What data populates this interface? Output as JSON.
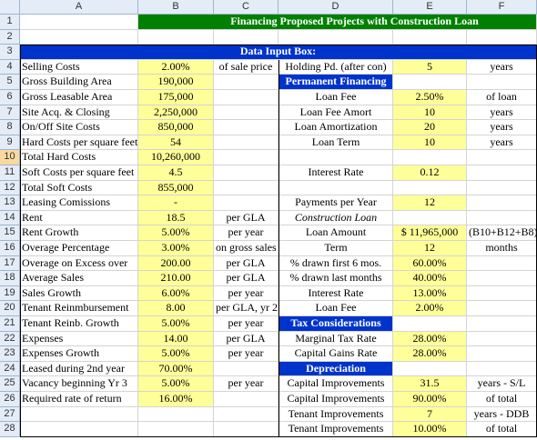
{
  "columns": [
    "A",
    "B",
    "C",
    "D",
    "E",
    "F"
  ],
  "rows": [
    "1",
    "2",
    "3",
    "4",
    "5",
    "6",
    "7",
    "8",
    "9",
    "10",
    "11",
    "12",
    "13",
    "14",
    "15",
    "16",
    "17",
    "18",
    "19",
    "20",
    "21",
    "22",
    "23",
    "24",
    "25",
    "26",
    "27",
    "28"
  ],
  "selected_row": "10",
  "sheet": {
    "title": "Financing Proposed Projects with Construction Loan",
    "data_input_header": "Data Input Box:",
    "left_labels": [
      "Selling Costs",
      "Gross Building Area",
      "Gross Leasable Area",
      "Site Acq. & Closing",
      "On/Off Site Costs",
      "Hard Costs per square feet",
      "Total Hard Costs",
      "Soft Costs per square feet",
      "Total Soft Costs",
      "Leasing Comissions",
      "Rent",
      "Rent Growth",
      "Overage Percentage",
      "Overage on Excess over",
      "Average Sales",
      "Sales Growth",
      "Tenant Reinmbursement",
      "Tenant Reinb. Growth",
      "Expenses",
      "Expenses Growth",
      "Leased during 2nd year",
      "Vacancy beginning Yr 3",
      "Required rate of return",
      "",
      ""
    ],
    "left_values": [
      "2.00%",
      "190,000",
      "175,000",
      "2,250,000",
      "850,000",
      "54",
      "10,260,000",
      "4.5",
      "855,000",
      "-",
      "18.5",
      "5.00%",
      "3.00%",
      "200.00",
      "210.00",
      "6.00%",
      "8.00",
      "5.00%",
      "14.00",
      "5.00%",
      "70.00%",
      "5.00%",
      "16.00%",
      "",
      ""
    ],
    "left_units": [
      "of sale price",
      "",
      "",
      "",
      "",
      "",
      "",
      "",
      "",
      "",
      "per GLA",
      "per year",
      "on gross sales",
      "per GLA",
      "per GLA",
      "per year",
      "per GLA, yr 2",
      "per year",
      "per GLA",
      "per year",
      "",
      "per year",
      "",
      "",
      ""
    ],
    "right_labels": [
      "Holding Pd. (after con)",
      "Permanent Financing",
      "Loan Fee",
      "Loan Fee Amort",
      "Loan Amortization",
      "Loan Term",
      "",
      "Interest Rate",
      "",
      "Payments per Year",
      "Construction Loan",
      "Loan Amount",
      "Term",
      "% drawn first 6 mos.",
      "% drawn last months",
      "Interest Rate",
      "Loan Fee",
      "Tax Considerations",
      "Marginal Tax Rate",
      "Capital Gains Rate",
      "Depreciation",
      "Capital Improvements",
      "Capital Improvements",
      "Tenant Improvements",
      "Tenant Improvements"
    ],
    "right_values": [
      "5",
      "",
      "2.50%",
      "10",
      "20",
      "10",
      "",
      "0.12",
      "",
      "12",
      "",
      "$ 11,965,000",
      "12",
      "60.00%",
      "40.00%",
      "13.00%",
      "2.00%",
      "",
      "28.00%",
      "28.00%",
      "",
      "31.5",
      "90.00%",
      "7",
      "10.00%"
    ],
    "right_units": [
      "years",
      "",
      "of loan",
      "years",
      "years",
      "years",
      "",
      "",
      "",
      "",
      "",
      "(B10+B12+B8)",
      "months",
      "",
      "",
      "",
      "",
      "",
      "",
      "",
      "",
      "years - S/L",
      "of total",
      "years - DDB",
      "of total"
    ]
  },
  "colors": {
    "title_fill": "#008000",
    "header_fill": "#0033cc",
    "input_fill": "#ffff99"
  }
}
